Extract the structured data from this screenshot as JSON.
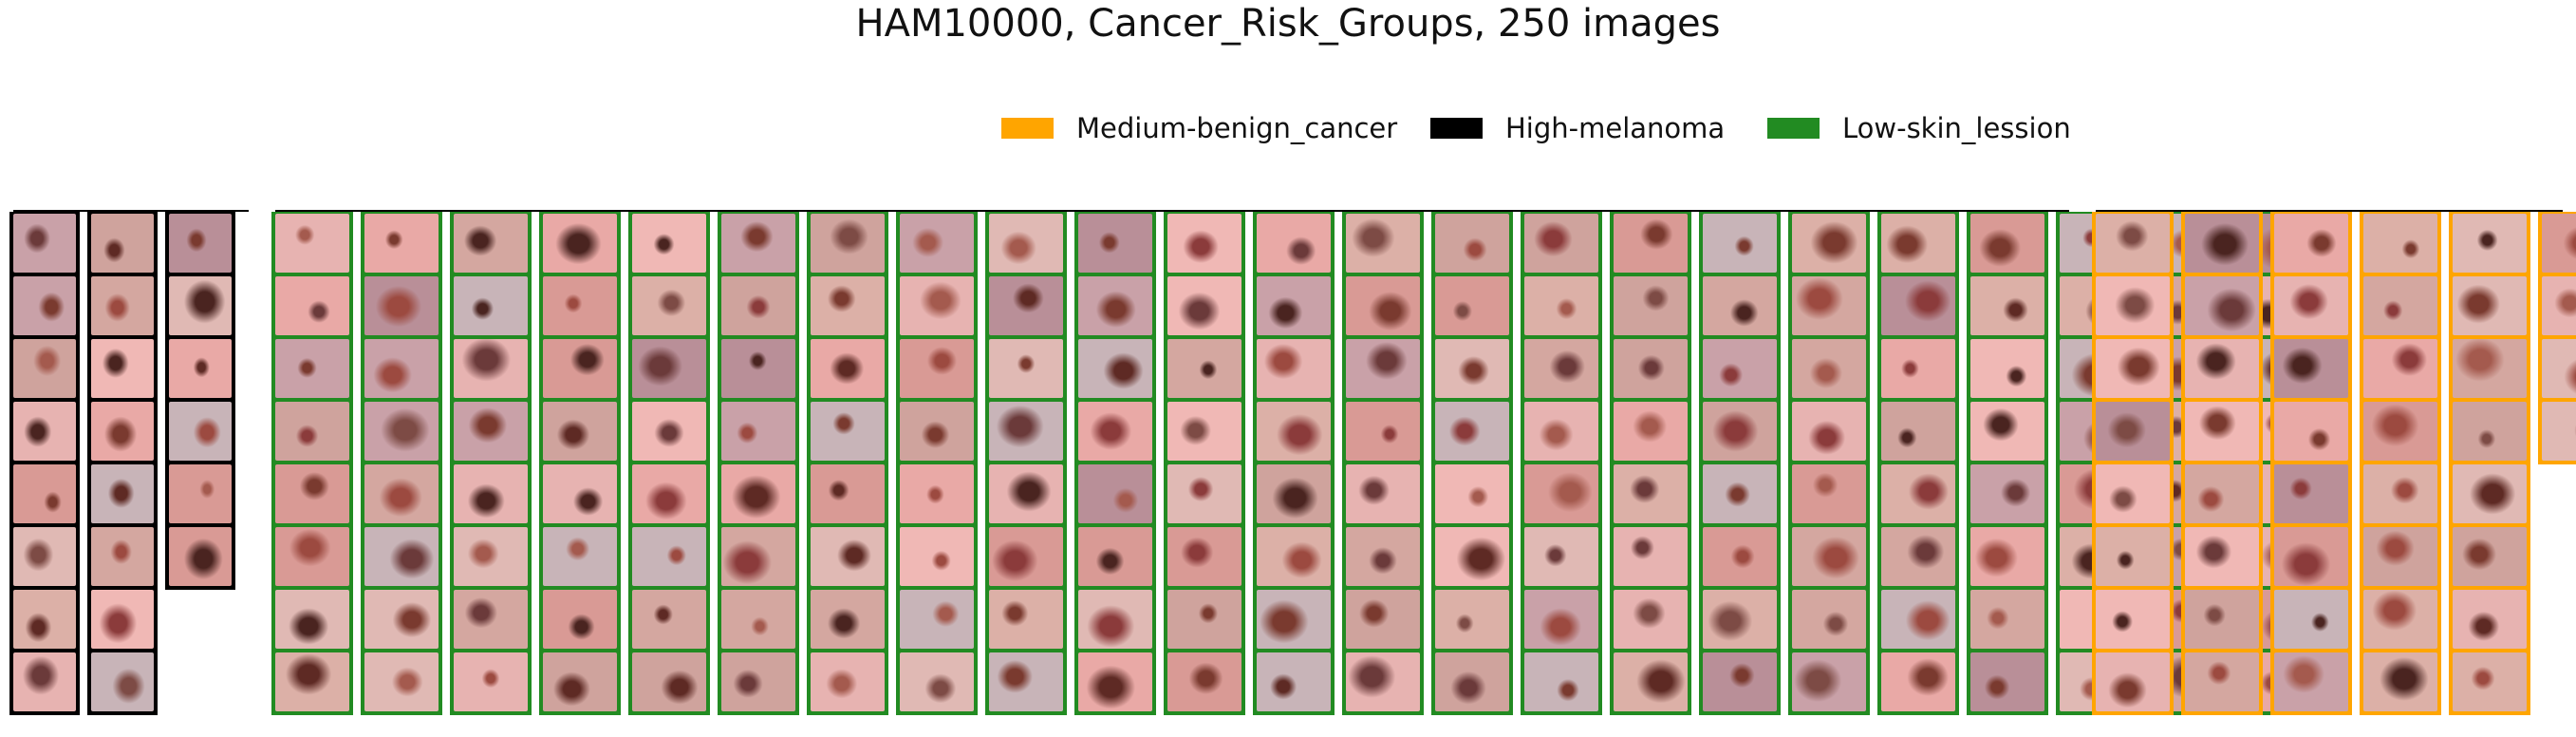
{
  "title": "HAM10000, Cancer_Risk_Groups, 250 images",
  "legend": [
    {
      "label": "Medium-benign_cancer",
      "color": "#FFA500"
    },
    {
      "label": "High-melanoma",
      "color": "#000000"
    },
    {
      "label": "Low-skin_lession",
      "color": "#228B22"
    }
  ],
  "groups": [
    {
      "name": "High-melanoma",
      "color": "#000000",
      "count": 22
    },
    {
      "name": "Low-skin_lession",
      "color": "#228B22",
      "count": 184
    },
    {
      "name": "Medium-benign_cancer",
      "color": "#FFA500",
      "count": 44
    }
  ],
  "image_kind": "dermoscopy-lesion-thumbnail"
}
